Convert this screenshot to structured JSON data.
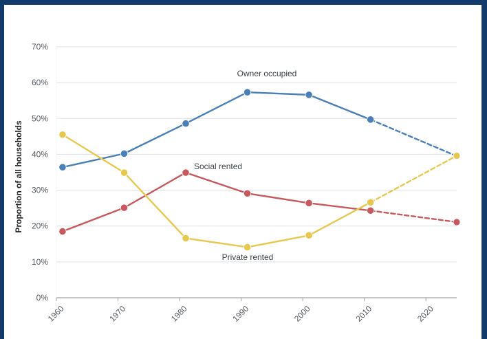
{
  "chart_data": {
    "type": "line",
    "title": "",
    "xlabel": "",
    "ylabel": "Proportion of all households",
    "x_ticks": [
      "1960",
      "1970",
      "1980",
      "1990",
      "2000",
      "2010",
      "2020"
    ],
    "y_ticks": [
      "0%",
      "10%",
      "20%",
      "30%",
      "40%",
      "50%",
      "60%",
      "70%"
    ],
    "x_range": [
      1960,
      2025
    ],
    "ylim": [
      0,
      70
    ],
    "grid": true,
    "series": [
      {
        "name": "Owner occupied",
        "color": "#4a7fb8",
        "points": [
          {
            "x": 1961,
            "y": 36.4
          },
          {
            "x": 1971,
            "y": 40.2
          },
          {
            "x": 1981,
            "y": 48.6
          },
          {
            "x": 1991,
            "y": 57.3
          },
          {
            "x": 2001,
            "y": 56.6
          },
          {
            "x": 2011,
            "y": 49.7
          },
          {
            "x": 2025,
            "y": 39.5,
            "projected": true
          }
        ]
      },
      {
        "name": "Social rented",
        "color": "#c6585e",
        "points": [
          {
            "x": 1961,
            "y": 18.5
          },
          {
            "x": 1971,
            "y": 25.1
          },
          {
            "x": 1981,
            "y": 34.9
          },
          {
            "x": 1991,
            "y": 29.1
          },
          {
            "x": 2001,
            "y": 26.4
          },
          {
            "x": 2011,
            "y": 24.3
          },
          {
            "x": 2025,
            "y": 21.1,
            "projected": true
          }
        ]
      },
      {
        "name": "Private rented",
        "color": "#e7c84f",
        "points": [
          {
            "x": 1961,
            "y": 45.5
          },
          {
            "x": 1971,
            "y": 34.9
          },
          {
            "x": 1981,
            "y": 16.6
          },
          {
            "x": 1991,
            "y": 14.1
          },
          {
            "x": 2001,
            "y": 17.4
          },
          {
            "x": 2011,
            "y": 26.6
          },
          {
            "x": 2025,
            "y": 39.6,
            "projected": true
          }
        ]
      }
    ]
  }
}
